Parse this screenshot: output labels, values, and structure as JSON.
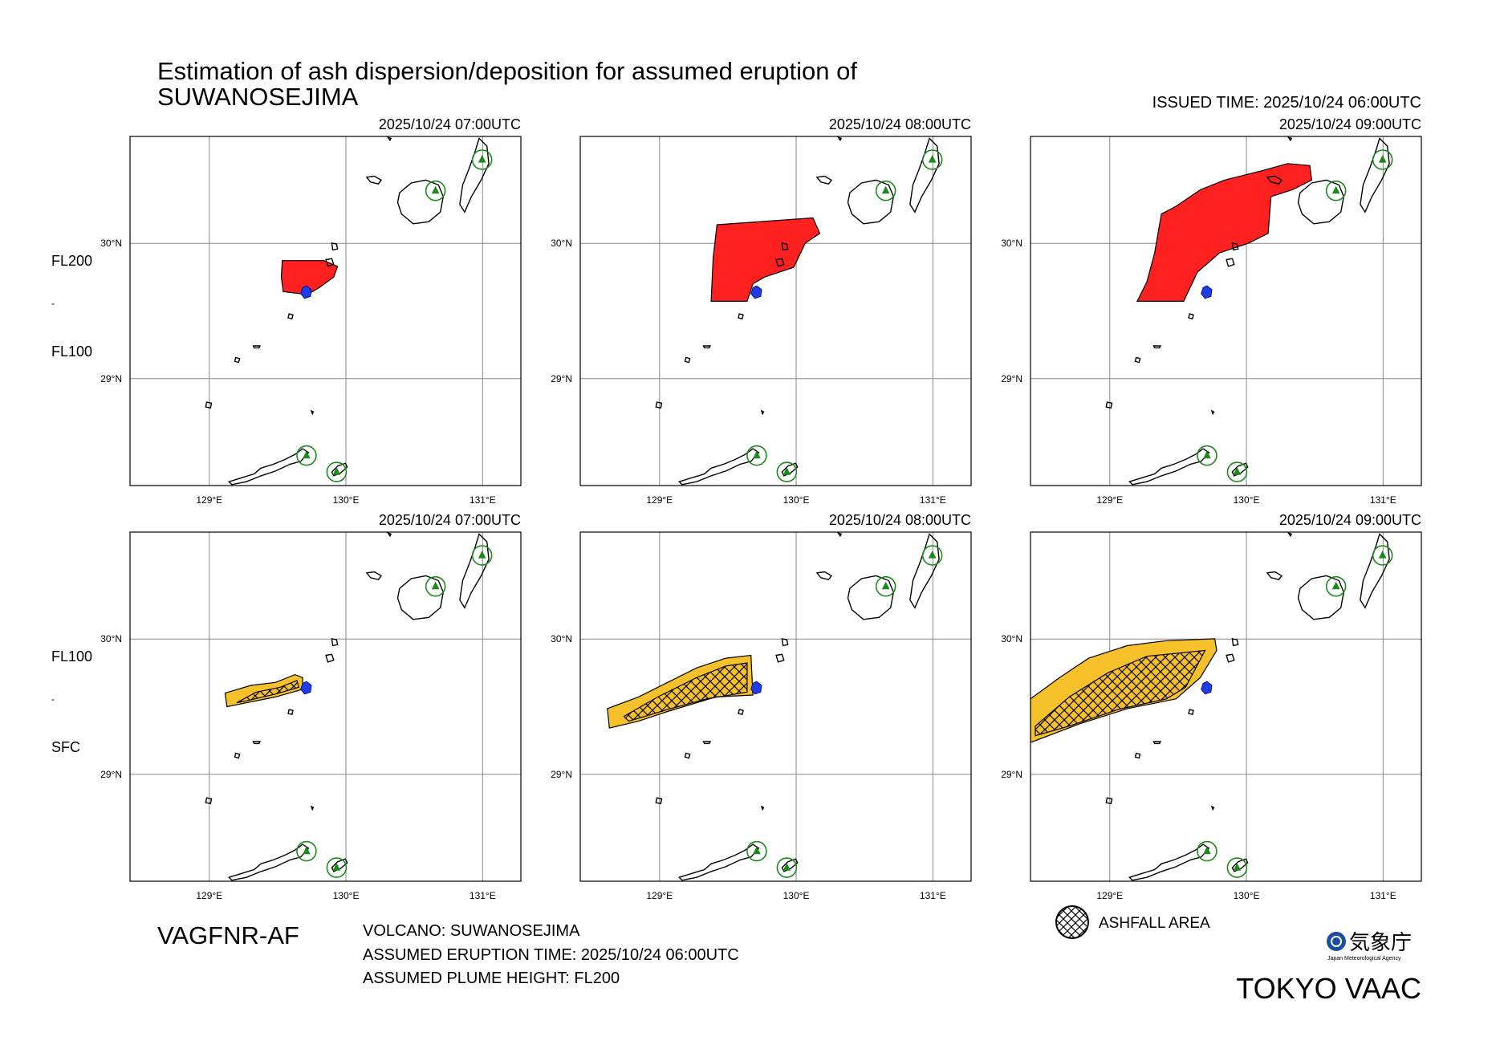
{
  "header": {
    "title": [
      "Estimation of ash dispersion/deposition for assumed eruption of",
      "SUWANOSEJIMA"
    ],
    "issued": "ISSUED TIME: 2025/10/24 06:00UTC"
  },
  "map": {
    "xlim": [
      128.42,
      131.28
    ],
    "ylim": [
      28.21,
      30.79
    ],
    "xticks": [
      {
        "value": 129,
        "label": "129°E"
      },
      {
        "value": 130,
        "label": "130°E"
      },
      {
        "value": 131,
        "label": "131°E"
      }
    ],
    "yticks": [
      {
        "value": 29,
        "label": "29°N"
      },
      {
        "value": 30,
        "label": "30°N"
      }
    ],
    "grid": true
  },
  "rows": [
    {
      "levels": [
        "FL200",
        "-",
        "FL100"
      ],
      "panels": [
        {
          "time": "2025/10/24 07:00UTC"
        },
        {
          "time": "2025/10/24 08:00UTC"
        },
        {
          "time": "2025/10/24 09:00UTC"
        }
      ]
    },
    {
      "levels": [
        "FL100",
        "-",
        "SFC"
      ],
      "panels": [
        {
          "time": "2025/10/24 07:00UTC"
        },
        {
          "time": "2025/10/24 08:00UTC"
        },
        {
          "time": "2025/10/24 09:00UTC"
        }
      ]
    }
  ],
  "footer": {
    "product": "VAGFNR-AF",
    "info": [
      "VOLCANO: SUWANOSEJIMA",
      "ASSUMED ERUPTION TIME: 2025/10/24 06:00UTC",
      "ASSUMED PLUME HEIGHT: FL200"
    ],
    "legend": "ASHFALL AREA",
    "agency": "気象庁",
    "agency_en": "Japan Meteorological Agency",
    "center": "TOKYO VAAC"
  }
}
